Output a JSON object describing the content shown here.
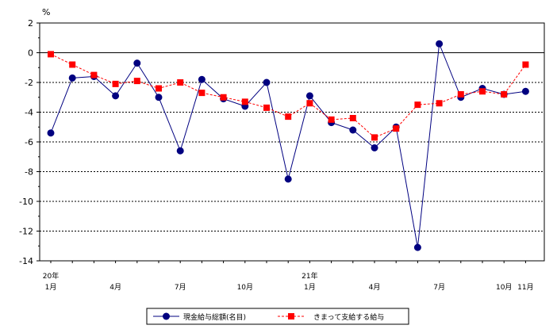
{
  "chart_data": {
    "type": "line",
    "unit_label": "%",
    "ylim": [
      -14,
      2
    ],
    "yticks": [
      2,
      0,
      -2,
      -4,
      -6,
      -8,
      -10,
      -12,
      -14
    ],
    "grid": true,
    "legend_position": "bottom",
    "x_labels": [
      {
        "index": 0,
        "year": "20年",
        "month": "1月"
      },
      {
        "index": 3,
        "year": "",
        "month": "4月"
      },
      {
        "index": 6,
        "year": "",
        "month": "7月"
      },
      {
        "index": 9,
        "year": "",
        "month": "10月"
      },
      {
        "index": 12,
        "year": "21年",
        "month": "1月"
      },
      {
        "index": 15,
        "year": "",
        "month": "4月"
      },
      {
        "index": 18,
        "year": "",
        "month": "7月"
      },
      {
        "index": 21,
        "year": "",
        "month": "10月"
      },
      {
        "index": 22,
        "year": "",
        "month": "11月"
      }
    ],
    "series": [
      {
        "name": "現金給与総額(名目)",
        "color": "#000080",
        "marker": "circle",
        "line_style": "solid",
        "values": [
          -5.4,
          -1.7,
          -1.6,
          -2.9,
          -0.7,
          -3.0,
          -6.6,
          -1.8,
          -3.1,
          -3.6,
          -2.0,
          -8.5,
          -2.9,
          -4.7,
          -5.2,
          -6.4,
          -5.0,
          -13.1,
          0.6,
          -3.0,
          -2.4,
          -2.8,
          -2.6
        ]
      },
      {
        "name": "きまって支給する給与",
        "color": "#ff0000",
        "marker": "square",
        "line_style": "dashed",
        "values": [
          -0.1,
          -0.8,
          -1.5,
          -2.1,
          -1.9,
          -2.4,
          -2.0,
          -2.7,
          -3.0,
          -3.3,
          -3.7,
          -4.3,
          -3.4,
          -4.5,
          -4.4,
          -5.7,
          -5.1,
          -3.5,
          -3.4,
          -2.8,
          -2.6,
          -2.8,
          -0.8
        ]
      }
    ]
  }
}
